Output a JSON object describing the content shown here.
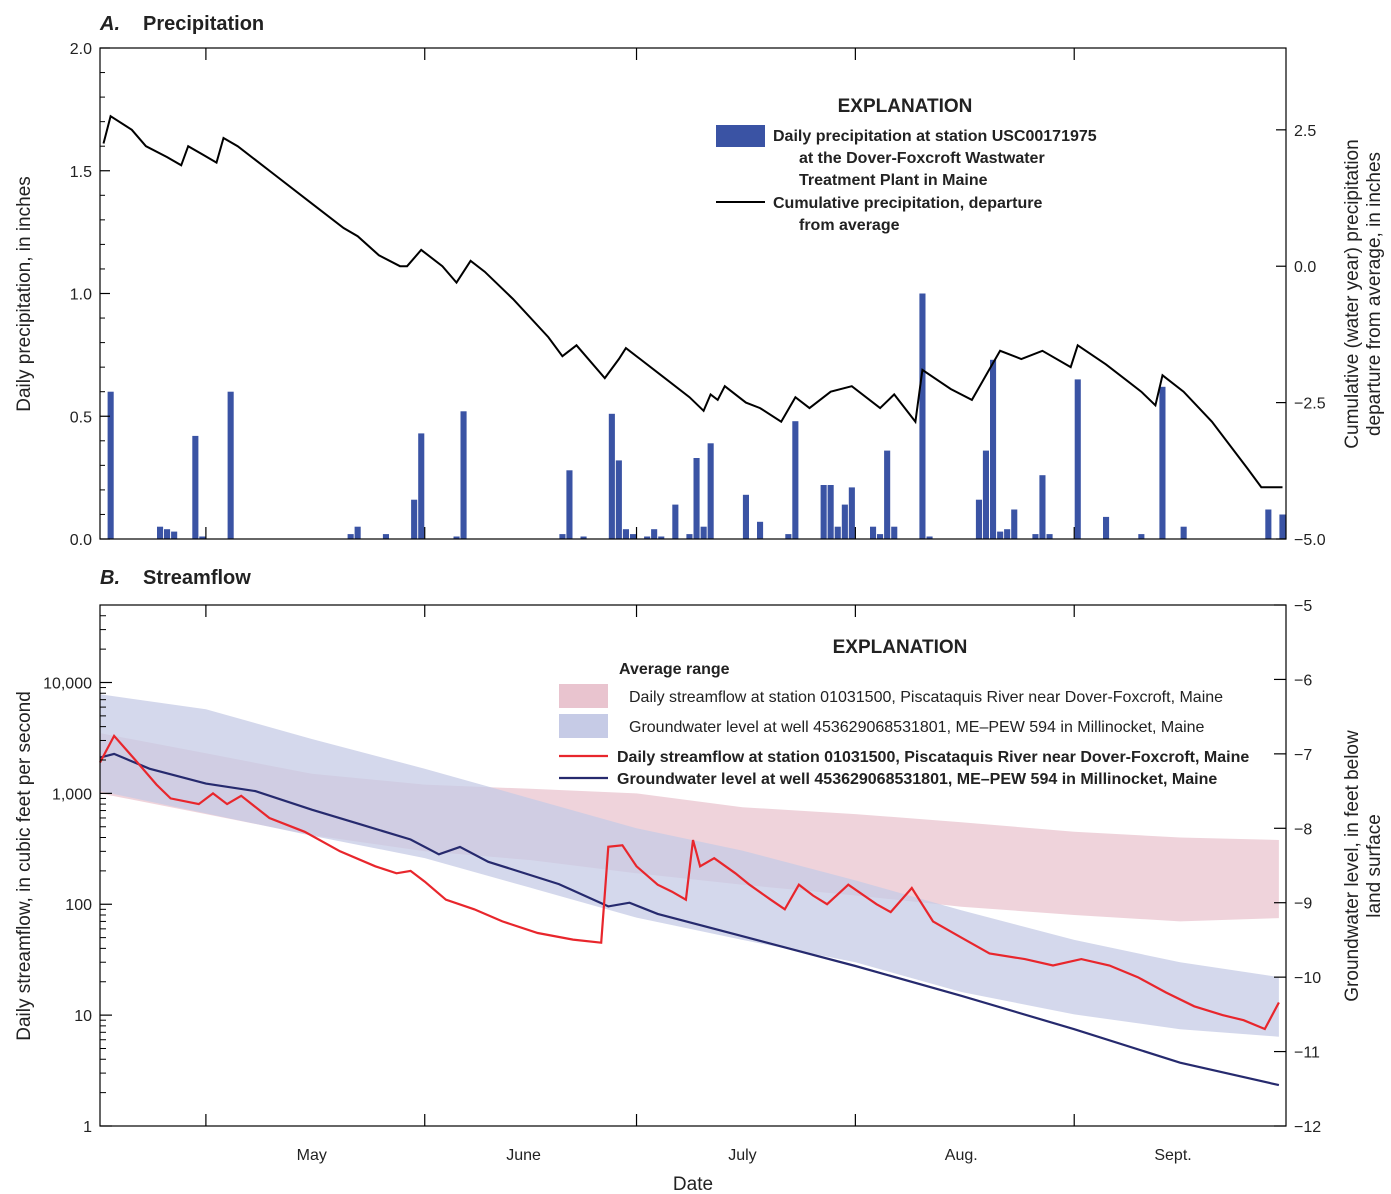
{
  "chart_data": [
    {
      "type": "bar",
      "panel_letter": "A.",
      "title": "Precipitation",
      "xlabel": "",
      "ylabel": "Daily precipitation, in inches",
      "ylim": [
        0,
        2.0
      ],
      "yticks": [
        "0.0",
        "0.5",
        "1.0",
        "1.5",
        "2.0"
      ],
      "y2label_line1": "Cumulative (water year) precipitation",
      "y2label_line2": "departure from average, in inches",
      "y2lim": [
        -5.0,
        4.0
      ],
      "y2ticks": [
        "−5.0",
        "−2.5",
        "0.0",
        "2.5"
      ],
      "x_start": "2020-04-16",
      "x_end": "2020-09-30",
      "legend": {
        "title": "EXPLANATION",
        "bar_label": [
          "Daily precipitation at station USC00171975",
          "at the Dover-Foxcroft Wastwater",
          "Treatment Plant in Maine"
        ],
        "line_label": [
          "Cumulative precipitation, departure",
          "from average"
        ]
      },
      "bar_color": "#3a53a4",
      "line_color": "#000000",
      "bars": [
        {
          "date": "2020-04-17",
          "value": 0.6
        },
        {
          "date": "2020-04-24",
          "value": 0.05
        },
        {
          "date": "2020-04-25",
          "value": 0.04
        },
        {
          "date": "2020-04-26",
          "value": 0.03
        },
        {
          "date": "2020-04-29",
          "value": 0.42
        },
        {
          "date": "2020-04-30",
          "value": 0.01
        },
        {
          "date": "2020-05-04",
          "value": 0.6
        },
        {
          "date": "2020-05-21",
          "value": 0.02
        },
        {
          "date": "2020-05-22",
          "value": 0.05
        },
        {
          "date": "2020-05-26",
          "value": 0.02
        },
        {
          "date": "2020-05-30",
          "value": 0.16
        },
        {
          "date": "2020-05-31",
          "value": 0.43
        },
        {
          "date": "2020-06-05",
          "value": 0.01
        },
        {
          "date": "2020-06-06",
          "value": 0.52
        },
        {
          "date": "2020-06-20",
          "value": 0.02
        },
        {
          "date": "2020-06-21",
          "value": 0.28
        },
        {
          "date": "2020-06-23",
          "value": 0.01
        },
        {
          "date": "2020-06-27",
          "value": 0.51
        },
        {
          "date": "2020-06-28",
          "value": 0.32
        },
        {
          "date": "2020-06-29",
          "value": 0.04
        },
        {
          "date": "2020-06-30",
          "value": 0.02
        },
        {
          "date": "2020-07-02",
          "value": 0.01
        },
        {
          "date": "2020-07-03",
          "value": 0.04
        },
        {
          "date": "2020-07-04",
          "value": 0.01
        },
        {
          "date": "2020-07-06",
          "value": 0.14
        },
        {
          "date": "2020-07-08",
          "value": 0.02
        },
        {
          "date": "2020-07-09",
          "value": 0.33
        },
        {
          "date": "2020-07-10",
          "value": 0.05
        },
        {
          "date": "2020-07-11",
          "value": 0.39
        },
        {
          "date": "2020-07-16",
          "value": 0.18
        },
        {
          "date": "2020-07-18",
          "value": 0.07
        },
        {
          "date": "2020-07-22",
          "value": 0.02
        },
        {
          "date": "2020-07-23",
          "value": 0.48
        },
        {
          "date": "2020-07-27",
          "value": 0.22
        },
        {
          "date": "2020-07-28",
          "value": 0.22
        },
        {
          "date": "2020-07-29",
          "value": 0.05
        },
        {
          "date": "2020-07-30",
          "value": 0.14
        },
        {
          "date": "2020-07-31",
          "value": 0.21
        },
        {
          "date": "2020-08-03",
          "value": 0.05
        },
        {
          "date": "2020-08-04",
          "value": 0.02
        },
        {
          "date": "2020-08-05",
          "value": 0.36
        },
        {
          "date": "2020-08-06",
          "value": 0.05
        },
        {
          "date": "2020-08-10",
          "value": 1.0
        },
        {
          "date": "2020-08-11",
          "value": 0.01
        },
        {
          "date": "2020-08-18",
          "value": 0.16
        },
        {
          "date": "2020-08-19",
          "value": 0.36
        },
        {
          "date": "2020-08-20",
          "value": 0.73
        },
        {
          "date": "2020-08-21",
          "value": 0.03
        },
        {
          "date": "2020-08-22",
          "value": 0.04
        },
        {
          "date": "2020-08-23",
          "value": 0.12
        },
        {
          "date": "2020-08-26",
          "value": 0.02
        },
        {
          "date": "2020-08-27",
          "value": 0.26
        },
        {
          "date": "2020-08-28",
          "value": 0.02
        },
        {
          "date": "2020-09-01",
          "value": 0.65
        },
        {
          "date": "2020-09-05",
          "value": 0.09
        },
        {
          "date": "2020-09-10",
          "value": 0.02
        },
        {
          "date": "2020-09-13",
          "value": 0.62
        },
        {
          "date": "2020-09-16",
          "value": 0.05
        },
        {
          "date": "2020-09-28",
          "value": 0.12
        },
        {
          "date": "2020-09-30",
          "value": 0.1
        }
      ],
      "cumulative_departure": [
        [
          "2020-04-16",
          2.25
        ],
        [
          "2020-04-17",
          2.75
        ],
        [
          "2020-04-20",
          2.5
        ],
        [
          "2020-04-22",
          2.2
        ],
        [
          "2020-04-25",
          2.0
        ],
        [
          "2020-04-27",
          1.85
        ],
        [
          "2020-04-28",
          2.2
        ],
        [
          "2020-04-30",
          2.05
        ],
        [
          "2020-05-02",
          1.9
        ],
        [
          "2020-05-03",
          2.35
        ],
        [
          "2020-05-05",
          2.2
        ],
        [
          "2020-05-10",
          1.7
        ],
        [
          "2020-05-15",
          1.2
        ],
        [
          "2020-05-20",
          0.7
        ],
        [
          "2020-05-22",
          0.55
        ],
        [
          "2020-05-25",
          0.2
        ],
        [
          "2020-05-28",
          0.0
        ],
        [
          "2020-05-29",
          0.0
        ],
        [
          "2020-05-31",
          0.3
        ],
        [
          "2020-06-03",
          0.0
        ],
        [
          "2020-06-05",
          -0.3
        ],
        [
          "2020-06-07",
          0.1
        ],
        [
          "2020-06-09",
          -0.1
        ],
        [
          "2020-06-13",
          -0.6
        ],
        [
          "2020-06-18",
          -1.3
        ],
        [
          "2020-06-20",
          -1.65
        ],
        [
          "2020-06-22",
          -1.45
        ],
        [
          "2020-06-26",
          -2.05
        ],
        [
          "2020-06-28",
          -1.7
        ],
        [
          "2020-06-29",
          -1.5
        ],
        [
          "2020-07-01",
          -1.7
        ],
        [
          "2020-07-04",
          -2.0
        ],
        [
          "2020-07-08",
          -2.4
        ],
        [
          "2020-07-10",
          -2.65
        ],
        [
          "2020-07-11",
          -2.35
        ],
        [
          "2020-07-12",
          -2.45
        ],
        [
          "2020-07-13",
          -2.2
        ],
        [
          "2020-07-16",
          -2.5
        ],
        [
          "2020-07-18",
          -2.6
        ],
        [
          "2020-07-21",
          -2.85
        ],
        [
          "2020-07-23",
          -2.4
        ],
        [
          "2020-07-25",
          -2.6
        ],
        [
          "2020-07-28",
          -2.3
        ],
        [
          "2020-07-31",
          -2.2
        ],
        [
          "2020-08-04",
          -2.6
        ],
        [
          "2020-08-06",
          -2.35
        ],
        [
          "2020-08-09",
          -2.85
        ],
        [
          "2020-08-10",
          -1.9
        ],
        [
          "2020-08-14",
          -2.25
        ],
        [
          "2020-08-17",
          -2.45
        ],
        [
          "2020-08-19",
          -2.0
        ],
        [
          "2020-08-21",
          -1.55
        ],
        [
          "2020-08-24",
          -1.7
        ],
        [
          "2020-08-27",
          -1.55
        ],
        [
          "2020-08-31",
          -1.85
        ],
        [
          "2020-09-01",
          -1.45
        ],
        [
          "2020-09-05",
          -1.8
        ],
        [
          "2020-09-10",
          -2.3
        ],
        [
          "2020-09-12",
          -2.55
        ],
        [
          "2020-09-13",
          -2.0
        ],
        [
          "2020-09-16",
          -2.3
        ],
        [
          "2020-09-20",
          -2.85
        ],
        [
          "2020-09-25",
          -3.7
        ],
        [
          "2020-09-27",
          -4.05
        ],
        [
          "2020-09-30",
          -4.05
        ]
      ]
    },
    {
      "type": "line",
      "panel_letter": "B.",
      "title": "Streamflow",
      "xlabel": "Date",
      "ylabel": "Daily streamflow, in cubic feet per second",
      "y_scale": "log",
      "ylim": [
        1,
        50000
      ],
      "yticks": [
        "1",
        "10",
        "100",
        "1,000",
        "10,000"
      ],
      "y2label_line1": "Groundwater level, in feet below",
      "y2label_line2": "land surface",
      "y2lim": [
        -12,
        -5
      ],
      "y2ticks": [
        "−12",
        "−11",
        "−10",
        "−9",
        "−8",
        "−7",
        "−6",
        "−5"
      ],
      "x_start": "2020-04-16",
      "x_end": "2020-09-30",
      "x_ticks": [
        {
          "label": "May",
          "center": "2020-05-16",
          "boundary": "2020-05-01"
        },
        {
          "label": "June",
          "center": "2020-06-15",
          "boundary": "2020-06-01"
        },
        {
          "label": "July",
          "center": "2020-07-16",
          "boundary": "2020-07-01"
        },
        {
          "label": "Aug.",
          "center": "2020-08-16",
          "boundary": "2020-08-01"
        },
        {
          "label": "Sept.",
          "center": "2020-09-15",
          "boundary": "2020-09-01"
        }
      ],
      "legend": {
        "title": "EXPLANATION",
        "subtitle": "Average range",
        "band1_label": "Daily streamflow at station 01031500, Piscataquis River near Dover-Foxcroft, Maine",
        "band2_label": "Groundwater level at well 453629068531801, ME–PEW 594 in Millinocket, Maine",
        "line1_label": "Daily streamflow at station 01031500, Piscataquis River near Dover-Foxcroft, Maine",
        "line2_label": "Groundwater level at well 453629068531801, ME–PEW 594 in Millinocket, Maine"
      },
      "colors": {
        "streamflow_line": "#e8262c",
        "gw_line": "#262a6e",
        "streamflow_band": "#e9c4cf",
        "gw_band": "#c6cbe6"
      },
      "streamflow_band": [
        [
          "2020-04-16",
          1000,
          3500
        ],
        [
          "2020-05-01",
          650,
          2300
        ],
        [
          "2020-05-16",
          420,
          1500
        ],
        [
          "2020-06-01",
          300,
          1200
        ],
        [
          "2020-06-16",
          250,
          1100
        ],
        [
          "2020-07-01",
          190,
          1000
        ],
        [
          "2020-07-16",
          150,
          750
        ],
        [
          "2020-08-01",
          120,
          650
        ],
        [
          "2020-08-16",
          95,
          550
        ],
        [
          "2020-09-01",
          80,
          450
        ],
        [
          "2020-09-16",
          70,
          400
        ],
        [
          "2020-09-30",
          75,
          380
        ]
      ],
      "gw_band": [
        [
          "2020-04-16",
          -7.5,
          -6.2
        ],
        [
          "2020-05-01",
          -7.8,
          -6.4
        ],
        [
          "2020-05-16",
          -8.1,
          -6.8
        ],
        [
          "2020-06-01",
          -8.4,
          -7.2
        ],
        [
          "2020-06-16",
          -8.8,
          -7.6
        ],
        [
          "2020-07-01",
          -9.2,
          -8.0
        ],
        [
          "2020-07-16",
          -9.5,
          -8.3
        ],
        [
          "2020-08-01",
          -9.8,
          -8.7
        ],
        [
          "2020-08-16",
          -10.2,
          -9.1
        ],
        [
          "2020-09-01",
          -10.5,
          -9.5
        ],
        [
          "2020-09-16",
          -10.7,
          -9.8
        ],
        [
          "2020-09-30",
          -10.8,
          -10.0
        ]
      ],
      "streamflow": [
        [
          "2020-04-16",
          1900
        ],
        [
          "2020-04-18",
          3300
        ],
        [
          "2020-04-21",
          2000
        ],
        [
          "2020-04-24",
          1200
        ],
        [
          "2020-04-26",
          900
        ],
        [
          "2020-04-30",
          800
        ],
        [
          "2020-05-02",
          1000
        ],
        [
          "2020-05-04",
          800
        ],
        [
          "2020-05-06",
          950
        ],
        [
          "2020-05-10",
          600
        ],
        [
          "2020-05-15",
          450
        ],
        [
          "2020-05-20",
          300
        ],
        [
          "2020-05-25",
          220
        ],
        [
          "2020-05-28",
          190
        ],
        [
          "2020-05-30",
          200
        ],
        [
          "2020-06-01",
          160
        ],
        [
          "2020-06-04",
          110
        ],
        [
          "2020-06-08",
          90
        ],
        [
          "2020-06-12",
          70
        ],
        [
          "2020-06-17",
          55
        ],
        [
          "2020-06-22",
          48
        ],
        [
          "2020-06-26",
          45
        ],
        [
          "2020-06-27",
          330
        ],
        [
          "2020-06-29",
          340
        ],
        [
          "2020-07-01",
          220
        ],
        [
          "2020-07-04",
          150
        ],
        [
          "2020-07-06",
          130
        ],
        [
          "2020-07-08",
          110
        ],
        [
          "2020-07-09",
          380
        ],
        [
          "2020-07-10",
          220
        ],
        [
          "2020-07-12",
          260
        ],
        [
          "2020-07-15",
          190
        ],
        [
          "2020-07-17",
          150
        ],
        [
          "2020-07-20",
          110
        ],
        [
          "2020-07-22",
          90
        ],
        [
          "2020-07-24",
          150
        ],
        [
          "2020-07-26",
          120
        ],
        [
          "2020-07-28",
          100
        ],
        [
          "2020-07-31",
          150
        ],
        [
          "2020-08-04",
          100
        ],
        [
          "2020-08-06",
          85
        ],
        [
          "2020-08-09",
          140
        ],
        [
          "2020-08-12",
          70
        ],
        [
          "2020-08-16",
          50
        ],
        [
          "2020-08-20",
          36
        ],
        [
          "2020-08-25",
          32
        ],
        [
          "2020-08-29",
          28
        ],
        [
          "2020-09-02",
          32
        ],
        [
          "2020-09-06",
          28
        ],
        [
          "2020-09-10",
          22
        ],
        [
          "2020-09-14",
          16
        ],
        [
          "2020-09-18",
          12
        ],
        [
          "2020-09-22",
          10
        ],
        [
          "2020-09-25",
          9
        ],
        [
          "2020-09-28",
          7.5
        ],
        [
          "2020-09-30",
          13
        ]
      ],
      "groundwater": [
        [
          "2020-04-16",
          -7.05
        ],
        [
          "2020-04-18",
          -7.0
        ],
        [
          "2020-04-23",
          -7.2
        ],
        [
          "2020-05-01",
          -7.4
        ],
        [
          "2020-05-08",
          -7.5
        ],
        [
          "2020-05-16",
          -7.75
        ],
        [
          "2020-05-23",
          -7.95
        ],
        [
          "2020-05-30",
          -8.15
        ],
        [
          "2020-06-03",
          -8.35
        ],
        [
          "2020-06-06",
          -8.25
        ],
        [
          "2020-06-10",
          -8.45
        ],
        [
          "2020-06-20",
          -8.75
        ],
        [
          "2020-06-27",
          -9.05
        ],
        [
          "2020-06-30",
          -9.0
        ],
        [
          "2020-07-04",
          -9.15
        ],
        [
          "2020-07-16",
          -9.45
        ],
        [
          "2020-08-01",
          -9.85
        ],
        [
          "2020-08-16",
          -10.25
        ],
        [
          "2020-09-01",
          -10.7
        ],
        [
          "2020-09-16",
          -11.15
        ],
        [
          "2020-09-30",
          -11.45
        ]
      ]
    }
  ]
}
